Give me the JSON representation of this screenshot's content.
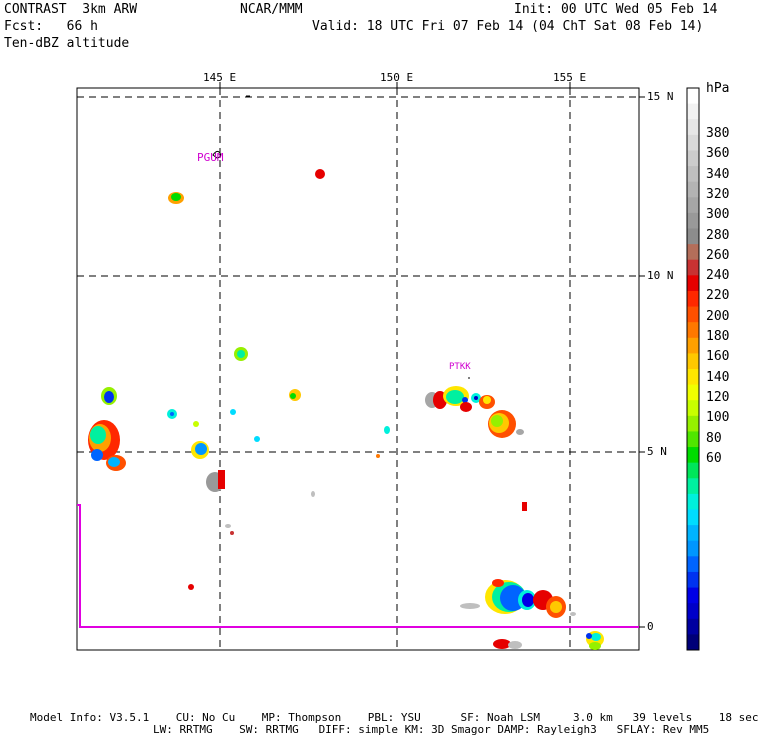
{
  "header": {
    "model": "CONTRAST  3km ARW",
    "center": "NCAR/MMM",
    "init": "Init: 00 UTC Wed 05 Feb 14",
    "fcst": "Fcst:   66 h",
    "valid": "Valid: 18 UTC Fri 07 Feb 14 (04 ChT Sat 08 Feb 14)",
    "field": "Ten-dBZ altitude"
  },
  "map": {
    "lon_labels": [
      "145 E",
      "150 E",
      "155 E"
    ],
    "lat_labels": [
      "15 N",
      "10 N",
      "5 N",
      "0"
    ],
    "stations": [
      "PGUM",
      "PTKK"
    ]
  },
  "colorbar": {
    "unit": "hPa",
    "labels": [
      "380",
      "360",
      "340",
      "320",
      "300",
      "280",
      "260",
      "240",
      "220",
      "200",
      "180",
      "160",
      "140",
      "120",
      "100",
      "80",
      "60"
    ],
    "colors": [
      "#ffffff",
      "#f2f2f2",
      "#e6e6e6",
      "#d9d9d9",
      "#cccccc",
      "#bfbfbf",
      "#b3b3b3",
      "#a6a6a6",
      "#999999",
      "#8c8c8c",
      "#b46e5a",
      "#c83232",
      "#e60000",
      "#ff2800",
      "#ff5000",
      "#ff7800",
      "#ffa000",
      "#ffc800",
      "#ffe600",
      "#f0ff00",
      "#c8ff00",
      "#96f000",
      "#50e600",
      "#00dc00",
      "#00e65a",
      "#00f0a0",
      "#00f0dc",
      "#00dcff",
      "#00b4ff",
      "#0096ff",
      "#0064ff",
      "#0032f0",
      "#0000e6",
      "#0000c8",
      "#0000a0",
      "#000078"
    ]
  },
  "footer": {
    "line1": "Model Info: V3.5.1    CU: No Cu    MP: Thompson    PBL: YSU      SF: Noah LSM     3.0 km   39 levels    18 sec",
    "line2": "LW: RRTMG    SW: RRTMG   DIFF: simple KM: 3D Smagor DAMP: Rayleigh3   SFLAY: Rev MM5"
  }
}
